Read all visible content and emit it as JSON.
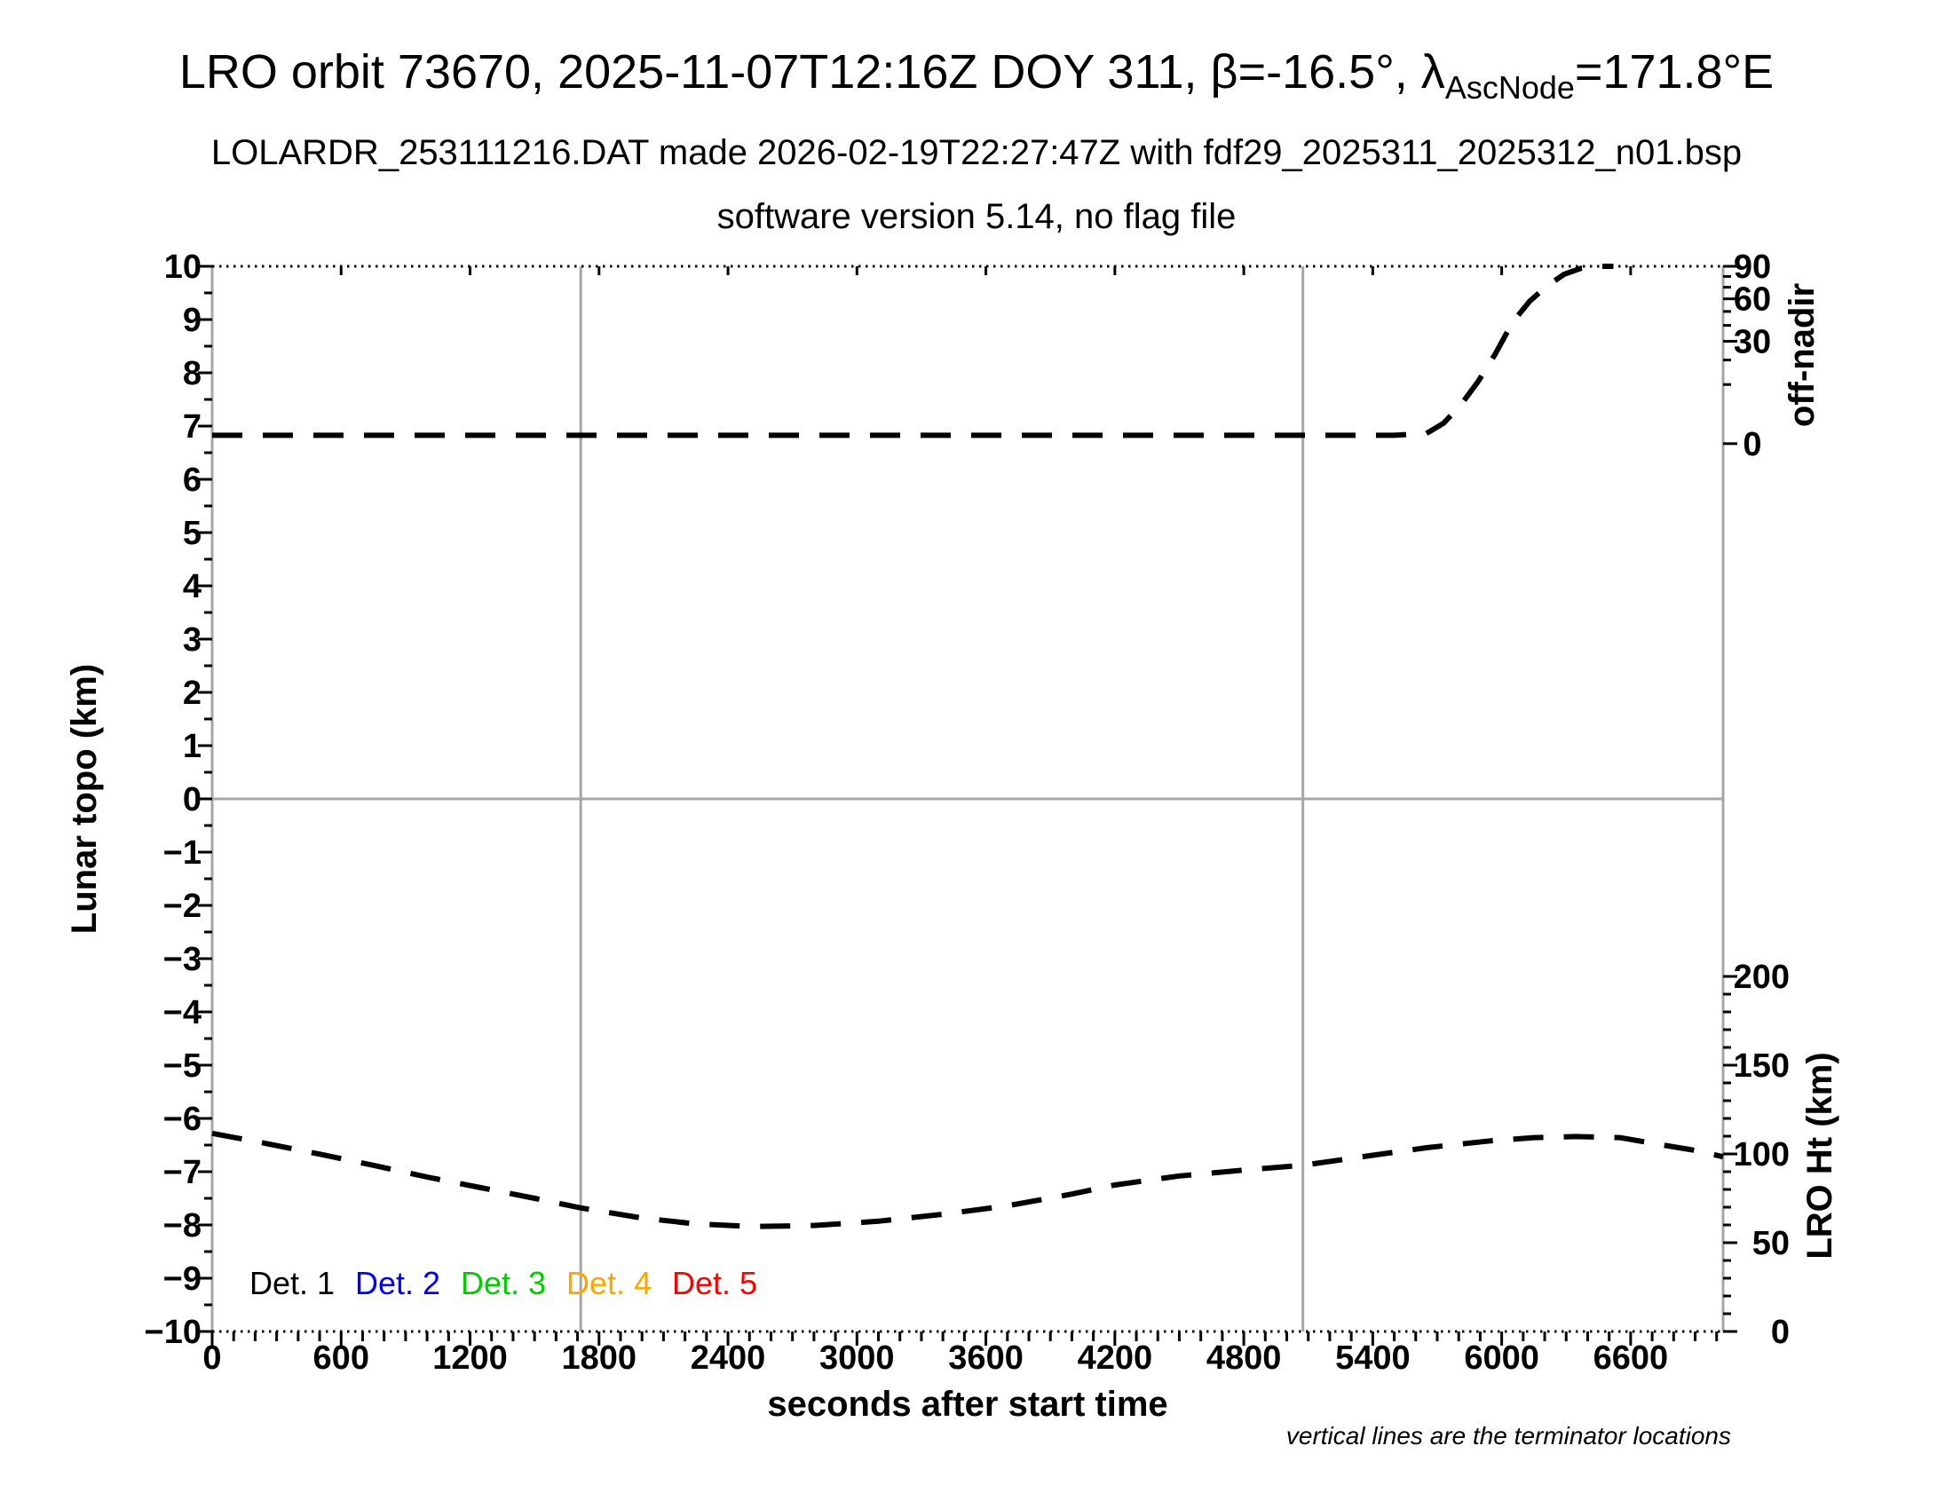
{
  "header": {
    "title_prefix": "LRO orbit 73670, 2025-11-07T12:16Z DOY 311, β=-16.5°, λ",
    "title_subscript": "AscNode",
    "title_suffix": "=171.8°E",
    "subtitle1": "LOLARDR_253111216.DAT made 2026-02-19T22:27:47Z with fdf29_2025311_2025312_n01.bsp",
    "subtitle2": "software version 5.14, no flag file"
  },
  "chart_data": {
    "type": "line",
    "xlabel": "seconds after start time",
    "footnote": "vertical lines are the terminator locations",
    "x_range": [
      0,
      7030
    ],
    "x_major_ticks": [
      0,
      600,
      1200,
      1800,
      2400,
      3000,
      3600,
      4200,
      4800,
      5400,
      6000,
      6600
    ],
    "x_minor_step": 100,
    "left_axis": {
      "label": "Lunar topo (km)",
      "range": [
        -10,
        10
      ],
      "major_step": 1,
      "minor_step": 0.5
    },
    "right_top_axis": {
      "label": "off-nadir",
      "units": "deg",
      "tick_labels": [
        90,
        60,
        30,
        0
      ],
      "minor_ticks": [
        10,
        20,
        40,
        50,
        70,
        80
      ],
      "mapping": "topo = 6.67 + 3.33*sqrt(deg/90)"
    },
    "right_bottom_axis": {
      "label": "LRO Ht (km)",
      "units": "km",
      "tick_labels": [
        200,
        150,
        100,
        50,
        0
      ],
      "minor_step_km": 10,
      "mapping": "topo = -10 + km/30"
    },
    "zero_line_topo": 0,
    "terminator_lines_s": [
      1715,
      5075
    ],
    "series": [
      {
        "name": "off-nadir angle",
        "units": "deg",
        "color": "#000000",
        "style": "dashed",
        "points": [
          [
            0,
            0.2
          ],
          [
            500,
            0.2
          ],
          [
            1000,
            0.2
          ],
          [
            1500,
            0.2
          ],
          [
            1715,
            0.2
          ],
          [
            2000,
            0.2
          ],
          [
            2500,
            0.2
          ],
          [
            3000,
            0.2
          ],
          [
            3500,
            0.2
          ],
          [
            4000,
            0.2
          ],
          [
            4500,
            0.2
          ],
          [
            5000,
            0.2
          ],
          [
            5075,
            0.2
          ],
          [
            5300,
            0.2
          ],
          [
            5500,
            0.2
          ],
          [
            5650,
            0.3
          ],
          [
            5730,
            1.2
          ],
          [
            5810,
            4.3
          ],
          [
            5890,
            11
          ],
          [
            5970,
            23
          ],
          [
            6050,
            42
          ],
          [
            6130,
            58
          ],
          [
            6210,
            71
          ],
          [
            6290,
            82
          ],
          [
            6370,
            88
          ],
          [
            6450,
            90
          ],
          [
            6520,
            90
          ]
        ]
      },
      {
        "name": "LRO height",
        "units": "km",
        "color": "#000000",
        "style": "dashed",
        "points": [
          [
            0,
            111.6
          ],
          [
            250,
            105.9
          ],
          [
            500,
            99.9
          ],
          [
            750,
            93.6
          ],
          [
            1000,
            87.0
          ],
          [
            1250,
            81.0
          ],
          [
            1500,
            75.0
          ],
          [
            1715,
            69.6
          ],
          [
            2000,
            63.9
          ],
          [
            2250,
            60.6
          ],
          [
            2520,
            59.1
          ],
          [
            2800,
            59.7
          ],
          [
            3100,
            62.1
          ],
          [
            3400,
            66.0
          ],
          [
            3700,
            70.8
          ],
          [
            4000,
            77.4
          ],
          [
            4200,
            82.5
          ],
          [
            4500,
            87.6
          ],
          [
            4800,
            90.9
          ],
          [
            5075,
            93.6
          ],
          [
            5350,
            98.4
          ],
          [
            5650,
            103.5
          ],
          [
            5950,
            107.4
          ],
          [
            6150,
            109.2
          ],
          [
            6350,
            109.8
          ],
          [
            6550,
            109.2
          ],
          [
            6750,
            105.0
          ],
          [
            6900,
            102.0
          ],
          [
            7030,
            98.4
          ]
        ]
      }
    ],
    "legend": [
      {
        "label": "Det. 1",
        "color": "#000000"
      },
      {
        "label": "Det. 2",
        "color": "#0000ff"
      },
      {
        "label": "Det. 3",
        "color": "#00cc00"
      },
      {
        "label": "Det. 4",
        "color": "#ffa500"
      },
      {
        "label": "Det. 5",
        "color": "#ff0000"
      }
    ],
    "colors": {
      "curve": "#000000",
      "frame_sides": "#a6a6a6",
      "reference_lines": "#a6a6a6",
      "dotted_frame": "#000000"
    }
  }
}
